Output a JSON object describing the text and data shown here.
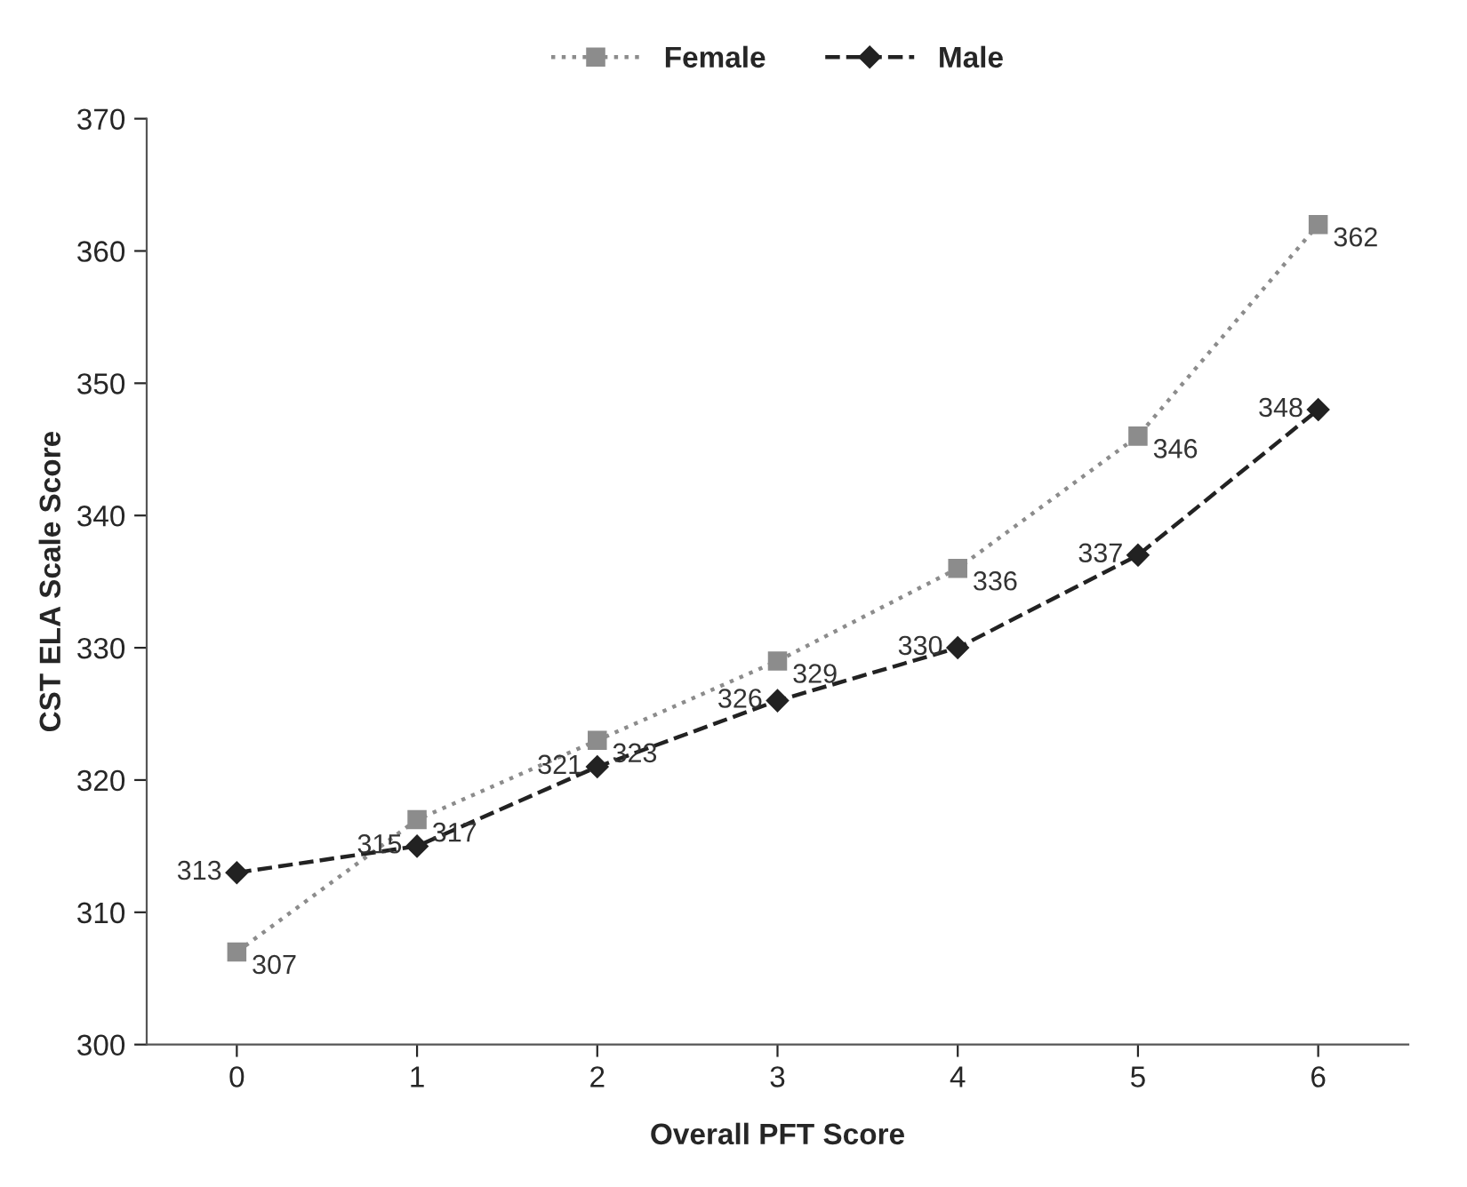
{
  "chart_data": {
    "type": "line",
    "xlabel": "Overall PFT Score",
    "ylabel": "CST ELA Scale Score",
    "categories": [
      "0",
      "1",
      "2",
      "3",
      "4",
      "5",
      "6"
    ],
    "series": [
      {
        "name": "Female",
        "color": "#8c8c8c",
        "values": [
          307,
          317,
          323,
          329,
          336,
          346,
          362
        ],
        "marker": "square",
        "line_style": "dotted"
      },
      {
        "name": "Male",
        "color": "#222222",
        "values": [
          313,
          315,
          321,
          326,
          330,
          337,
          348
        ],
        "marker": "diamond",
        "line_style": "dashed"
      }
    ],
    "ylim": [
      300,
      370
    ],
    "yticks": [
      300,
      310,
      320,
      330,
      340,
      350,
      360,
      370
    ],
    "grid": false,
    "legend": "top",
    "data_labels": true
  }
}
